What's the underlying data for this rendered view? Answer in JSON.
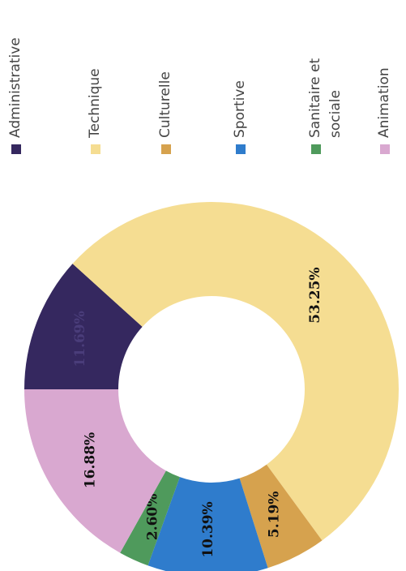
{
  "chart_data": {
    "type": "donut",
    "categories": [
      "Administrative",
      "Technique",
      "Culturelle",
      "Sportive",
      "Sanitaire et sociale",
      "Animation"
    ],
    "values": [
      11.69,
      53.25,
      5.19,
      10.39,
      2.6,
      16.88
    ],
    "value_labels": [
      "11.69%",
      "53.25%",
      "5.19%",
      "10.39%",
      "2.60%",
      "16.88%"
    ],
    "colors": [
      "#35285f",
      "#f5dd92",
      "#d6a24e",
      "#2f7ccc",
      "#4f9a5c",
      "#d9a8d0"
    ],
    "legend": "right"
  }
}
